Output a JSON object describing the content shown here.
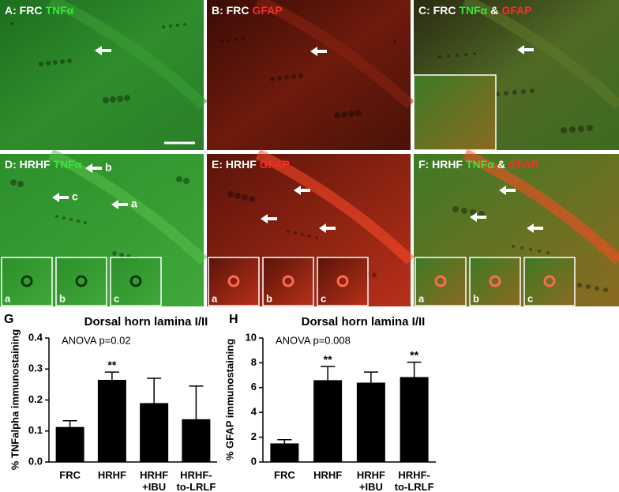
{
  "panels": [
    {
      "label": [
        {
          "text": "A: FRC",
          "color": "#ffffff"
        },
        {
          "text": "TNFα",
          "color": "#39e639"
        }
      ]
    },
    {
      "label": [
        {
          "text": "B: FRC",
          "color": "#ffffff"
        },
        {
          "text": "GFAP",
          "color": "#ff2a2a"
        }
      ]
    },
    {
      "label": [
        {
          "text": "C: FRC",
          "color": "#ffffff"
        },
        {
          "text": "TNFα",
          "color": "#39e639"
        },
        {
          "text": "&",
          "color": "#ffffff"
        },
        {
          "text": "GFAP",
          "color": "#ff2a2a"
        }
      ]
    },
    {
      "label": [
        {
          "text": "D: HRHF",
          "color": "#ffffff"
        },
        {
          "text": "TNFα",
          "color": "#39e639"
        }
      ],
      "arrow_labels": [
        "b",
        "c",
        "a"
      ],
      "insets": [
        "a",
        "b",
        "c"
      ]
    },
    {
      "label": [
        {
          "text": "E: HRHF",
          "color": "#ffffff"
        },
        {
          "text": "GFAP",
          "color": "#ff2a2a"
        }
      ],
      "insets": [
        "a",
        "b",
        "c"
      ]
    },
    {
      "label": [
        {
          "text": "F: HRHF",
          "color": "#ffffff"
        },
        {
          "text": "TNFα",
          "color": "#39e639"
        },
        {
          "text": "&",
          "color": "#ffffff"
        },
        {
          "text": "GFAP",
          "color": "#ff2a2a"
        }
      ],
      "insets": [
        "a",
        "b",
        "c"
      ]
    }
  ],
  "chart_data": [
    {
      "type": "bar",
      "panel_label": "G",
      "title": "Dorsal horn lamina I/II",
      "annotation": "ANOVA p=0.02",
      "y_label": "% TNFalpha immunostaining",
      "categories": [
        "FRC",
        "HRHF",
        "HRHF\n+IBU",
        "HRHF-\nto-LRLF"
      ],
      "values": [
        0.113,
        0.265,
        0.19,
        0.138
      ],
      "errors": [
        0.02,
        0.025,
        0.08,
        0.107
      ],
      "markers": [
        null,
        "**",
        null,
        null
      ],
      "color": "#000000",
      "ylim": [
        0,
        0.4
      ],
      "yticks": [
        {
          "value": 0,
          "label": "0.0"
        },
        0.1,
        0.2,
        0.3,
        0.4
      ]
    },
    {
      "type": "bar",
      "panel_label": "H",
      "title": "Dorsal horn lamina I/II",
      "annotation": "ANOVA p=0.008",
      "y_label": "% GFAP immunostaining",
      "categories": [
        "FRC",
        "HRHF",
        "HRHF\n+IBU",
        "HRHF-\nto-LRLF"
      ],
      "values": [
        1.5,
        6.6,
        6.4,
        6.85
      ],
      "errors": [
        0.3,
        1.1,
        0.85,
        1.2
      ],
      "markers": [
        null,
        "**",
        null,
        "**"
      ],
      "color": "#000000",
      "ylim": [
        0,
        10
      ],
      "yticks": [
        0,
        2,
        4,
        6,
        8,
        10
      ]
    }
  ]
}
